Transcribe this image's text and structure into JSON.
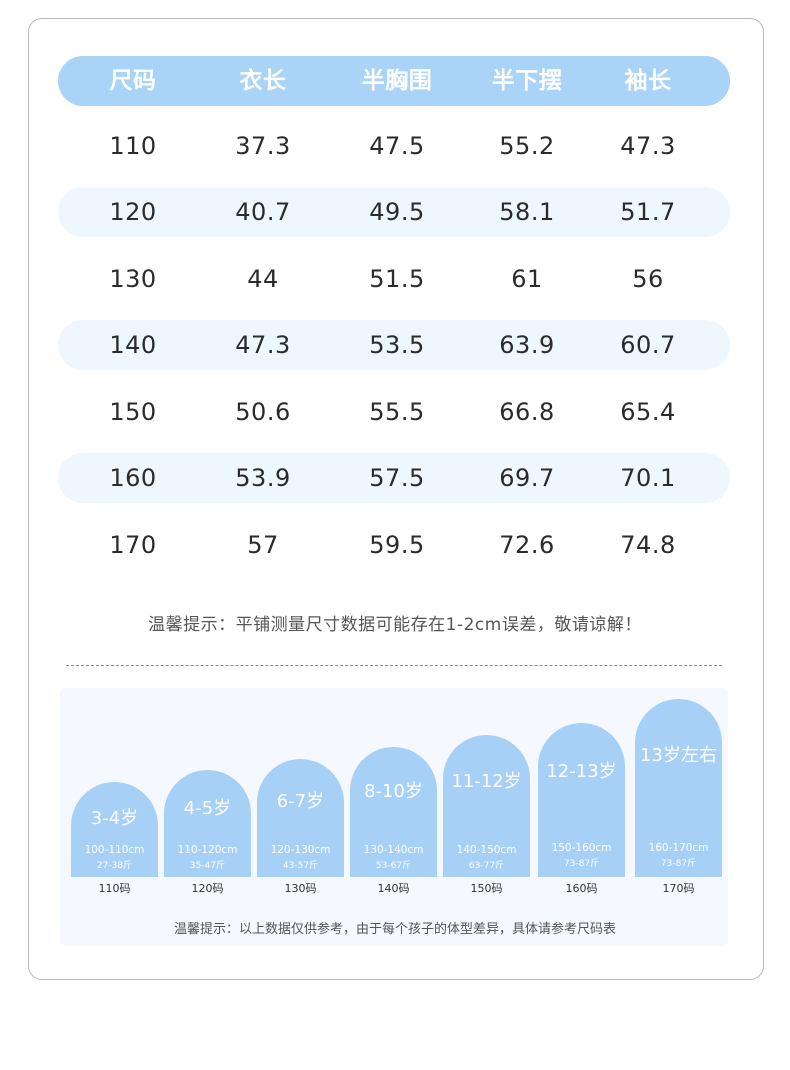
{
  "table": {
    "headers": [
      "尺码",
      "衣长",
      "半胸围",
      "半下摆",
      "袖长"
    ],
    "rows": [
      [
        "110",
        "37.3",
        "47.5",
        "55.2",
        "47.3"
      ],
      [
        "120",
        "40.7",
        "49.5",
        "58.1",
        "51.7"
      ],
      [
        "130",
        "44",
        "51.5",
        "61",
        "56"
      ],
      [
        "140",
        "47.3",
        "53.5",
        "63.9",
        "60.7"
      ],
      [
        "150",
        "50.6",
        "55.5",
        "66.8",
        "65.4"
      ],
      [
        "160",
        "53.9",
        "57.5",
        "69.7",
        "70.1"
      ],
      [
        "170",
        "57",
        "59.5",
        "72.6",
        "74.8"
      ]
    ]
  },
  "note_top": "温馨提示：平铺测量尺寸数据可能存在1-2cm误差，敬请谅解！",
  "age_chart": {
    "items": [
      {
        "age": "3-4岁",
        "height": "100-110cm",
        "weight": "27-38斤",
        "size": "110码"
      },
      {
        "age": "4-5岁",
        "height": "110-120cm",
        "weight": "35-47斤",
        "size": "120码"
      },
      {
        "age": "6-7岁",
        "height": "120-130cm",
        "weight": "43-57斤",
        "size": "130码"
      },
      {
        "age": "8-10岁",
        "height": "130-140cm",
        "weight": "53-67斤",
        "size": "140码"
      },
      {
        "age": "11-12岁",
        "height": "140-150cm",
        "weight": "63-77斤",
        "size": "150码"
      },
      {
        "age": "12-13岁",
        "height": "150-160cm",
        "weight": "73-87斤",
        "size": "160码"
      },
      {
        "age": "13岁左右",
        "height": "160-170cm",
        "weight": "73-87斤",
        "size": "170码"
      }
    ]
  },
  "note_bottom": "温馨提示：以上数据仅供参考，由于每个孩子的体型差异，具体请参考尺码表",
  "colors": {
    "accent": "#a9d3f7",
    "row_alt": "#eef6fe"
  }
}
